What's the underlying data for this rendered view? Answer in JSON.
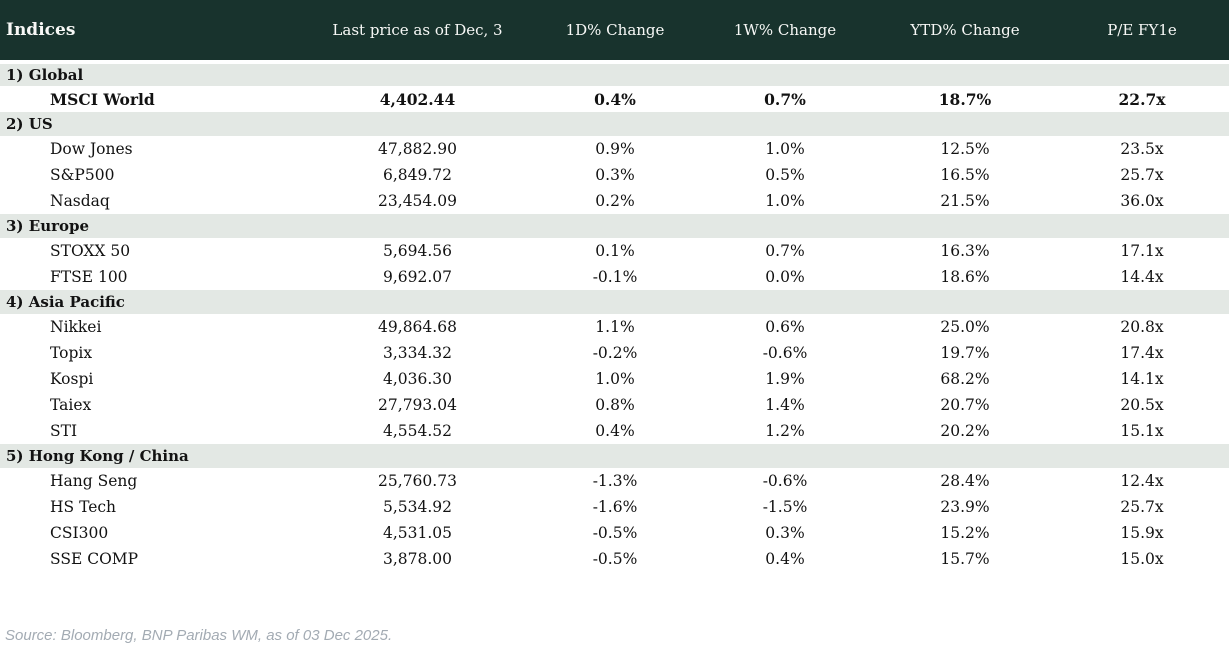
{
  "chart_data": {
    "type": "table",
    "title": "Indices",
    "columns": [
      "Indices",
      "Last price as of Dec, 3",
      "1D% Change",
      "1W% Change",
      "YTD% Change",
      "P/E FY1e"
    ],
    "sections": [
      {
        "title": "1) Global",
        "rows": [
          {
            "name": "MSCI World",
            "price": "4,402.44",
            "d1": "0.4%",
            "w1": "0.7%",
            "ytd": "18.7%",
            "pe": "22.7x",
            "bold": true
          }
        ]
      },
      {
        "title": "2) US",
        "rows": [
          {
            "name": "Dow Jones",
            "price": "47,882.90",
            "d1": "0.9%",
            "w1": "1.0%",
            "ytd": "12.5%",
            "pe": "23.5x"
          },
          {
            "name": "S&P500",
            "price": "6,849.72",
            "d1": "0.3%",
            "w1": "0.5%",
            "ytd": "16.5%",
            "pe": "25.7x"
          },
          {
            "name": "Nasdaq",
            "price": "23,454.09",
            "d1": "0.2%",
            "w1": "1.0%",
            "ytd": "21.5%",
            "pe": "36.0x"
          }
        ]
      },
      {
        "title": "3) Europe",
        "rows": [
          {
            "name": "STOXX 50",
            "price": "5,694.56",
            "d1": "0.1%",
            "w1": "0.7%",
            "ytd": "16.3%",
            "pe": "17.1x"
          },
          {
            "name": "FTSE 100",
            "price": "9,692.07",
            "d1": "-0.1%",
            "w1": "0.0%",
            "ytd": "18.6%",
            "pe": "14.4x"
          }
        ]
      },
      {
        "title": "4) Asia Pacific",
        "rows": [
          {
            "name": "Nikkei",
            "price": "49,864.68",
            "d1": "1.1%",
            "w1": "0.6%",
            "ytd": "25.0%",
            "pe": "20.8x"
          },
          {
            "name": "Topix",
            "price": "3,334.32",
            "d1": "-0.2%",
            "w1": "-0.6%",
            "ytd": "19.7%",
            "pe": "17.4x"
          },
          {
            "name": "Kospi",
            "price": "4,036.30",
            "d1": "1.0%",
            "w1": "1.9%",
            "ytd": "68.2%",
            "pe": "14.1x"
          },
          {
            "name": "Taiex",
            "price": "27,793.04",
            "d1": "0.8%",
            "w1": "1.4%",
            "ytd": "20.7%",
            "pe": "20.5x"
          },
          {
            "name": "STI",
            "price": "4,554.52",
            "d1": "0.4%",
            "w1": "1.2%",
            "ytd": "20.2%",
            "pe": "15.1x"
          }
        ]
      },
      {
        "title": "5) Hong Kong / China",
        "rows": [
          {
            "name": "Hang Seng",
            "price": "25,760.73",
            "d1": "-1.3%",
            "w1": "-0.6%",
            "ytd": "28.4%",
            "pe": "12.4x"
          },
          {
            "name": "HS Tech",
            "price": "5,534.92",
            "d1": "-1.6%",
            "w1": "-1.5%",
            "ytd": "23.9%",
            "pe": "25.7x"
          },
          {
            "name": "CSI300",
            "price": "4,531.05",
            "d1": "-0.5%",
            "w1": "0.3%",
            "ytd": "15.2%",
            "pe": "15.9x"
          },
          {
            "name": "SSE COMP",
            "price": "3,878.00",
            "d1": "-0.5%",
            "w1": "0.4%",
            "ytd": "15.7%",
            "pe": "15.0x"
          }
        ]
      }
    ],
    "layout": {
      "column_alignment": [
        "left",
        "center",
        "center",
        "center",
        "center",
        "center"
      ],
      "grid": "off",
      "section_rows_highlighted": true
    }
  },
  "footer": {
    "source": "Source: Bloomberg, BNP Paribas WM, as of 03 Dec 2025."
  },
  "colors": {
    "header_bg": "#18332d",
    "header_text": "#f7f8f6",
    "section_bg": "#e3e8e4",
    "positive": "#088a08",
    "negative": "#c41e32",
    "body_text": "#121212",
    "footer_text": "#a3abb3"
  }
}
